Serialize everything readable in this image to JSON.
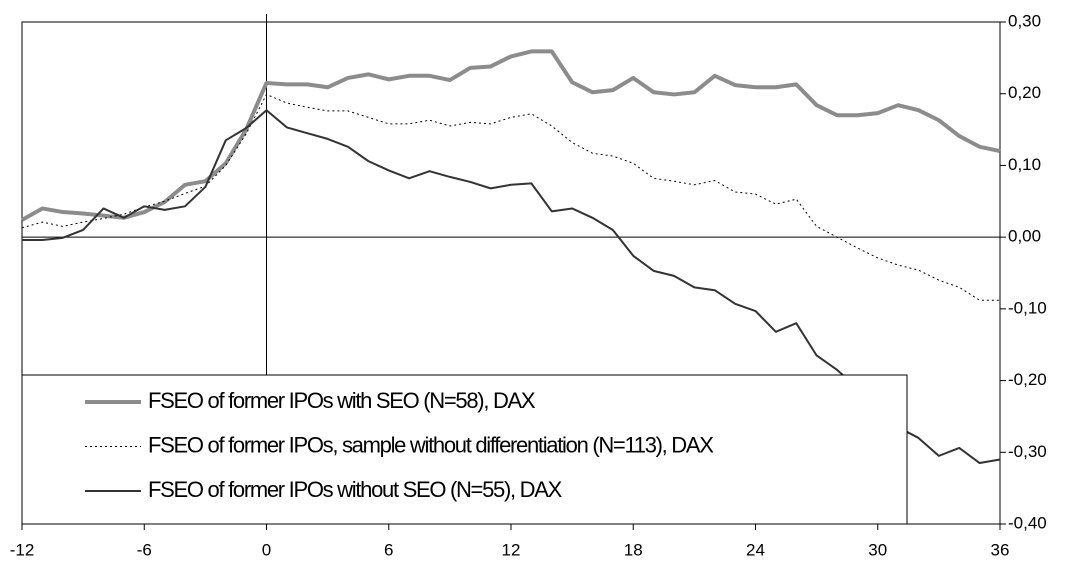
{
  "chart_data": {
    "type": "line",
    "x": [
      -12,
      -11,
      -10,
      -9,
      -8,
      -7,
      -6,
      -5,
      -4,
      -3,
      -2,
      -1,
      0,
      1,
      2,
      3,
      4,
      5,
      6,
      7,
      8,
      9,
      10,
      11,
      12,
      13,
      14,
      15,
      16,
      17,
      18,
      19,
      20,
      21,
      22,
      23,
      24,
      25,
      26,
      27,
      28,
      29,
      30,
      31,
      32,
      33,
      34,
      35,
      36
    ],
    "xlim": [
      -12,
      36
    ],
    "xticks": [
      -12,
      -6,
      0,
      6,
      12,
      18,
      24,
      30,
      36
    ],
    "ylim": [
      -0.4,
      0.3
    ],
    "yticks": [
      {
        "value": -0.4,
        "label": "-0,40"
      },
      {
        "value": -0.3,
        "label": "-0,30"
      },
      {
        "value": -0.2,
        "label": "-0,20"
      },
      {
        "value": -0.1,
        "label": "-0,10"
      },
      {
        "value": 0,
        "label": "0,00"
      },
      {
        "value": 0.1,
        "label": "0,10"
      },
      {
        "value": 0.2,
        "label": "0,20"
      },
      {
        "value": 0.3,
        "label": "0,30"
      }
    ],
    "y_axis_side": "right",
    "legend_position": "lower left",
    "series": [
      {
        "name": "FSEO of former IPOs with SEO (N=58), DAX",
        "color": "#8c8c8c",
        "line_width": 4,
        "line_style": "solid",
        "values": [
          0.024,
          0.04,
          0.035,
          0.033,
          0.03,
          0.027,
          0.035,
          0.049,
          0.073,
          0.078,
          0.103,
          0.15,
          0.215,
          0.213,
          0.213,
          0.209,
          0.222,
          0.227,
          0.22,
          0.225,
          0.225,
          0.219,
          0.236,
          0.238,
          0.252,
          0.259,
          0.259,
          0.216,
          0.202,
          0.205,
          0.222,
          0.202,
          0.199,
          0.202,
          0.225,
          0.212,
          0.209,
          0.209,
          0.213,
          0.184,
          0.17,
          0.17,
          0.173,
          0.184,
          0.177,
          0.163,
          0.141,
          0.126,
          0.12
        ]
      },
      {
        "name": "FSEO of former IPOs, sample without differentiation (N=113), DAX",
        "color": "#000000",
        "line_width": 1,
        "line_style": "dotted",
        "values": [
          0.013,
          0.021,
          0.015,
          0.021,
          0.026,
          0.032,
          0.042,
          0.05,
          0.061,
          0.071,
          0.1,
          0.144,
          0.199,
          0.187,
          0.181,
          0.176,
          0.176,
          0.167,
          0.158,
          0.158,
          0.163,
          0.155,
          0.16,
          0.158,
          0.167,
          0.172,
          0.155,
          0.132,
          0.117,
          0.113,
          0.103,
          0.082,
          0.078,
          0.073,
          0.079,
          0.063,
          0.06,
          0.046,
          0.053,
          0.015,
          0.0,
          -0.015,
          -0.029,
          -0.039,
          -0.046,
          -0.06,
          -0.07,
          -0.088,
          -0.088
        ]
      },
      {
        "name": "FSEO of former IPOs without SEO (N=55), DAX",
        "color": "#333333",
        "line_width": 2,
        "line_style": "solid",
        "values": [
          -0.004,
          -0.004,
          -0.001,
          0.01,
          0.04,
          0.027,
          0.043,
          0.038,
          0.043,
          0.07,
          0.135,
          0.152,
          0.177,
          0.153,
          0.145,
          0.137,
          0.126,
          0.106,
          0.093,
          0.082,
          0.092,
          0.084,
          0.077,
          0.068,
          0.073,
          0.075,
          0.036,
          0.04,
          0.027,
          0.01,
          -0.026,
          -0.047,
          -0.054,
          -0.07,
          -0.074,
          -0.093,
          -0.103,
          -0.132,
          -0.12,
          -0.165,
          -0.185,
          -0.21,
          -0.24,
          -0.265,
          -0.28,
          -0.305,
          -0.294,
          -0.315,
          -0.31
        ]
      }
    ]
  }
}
